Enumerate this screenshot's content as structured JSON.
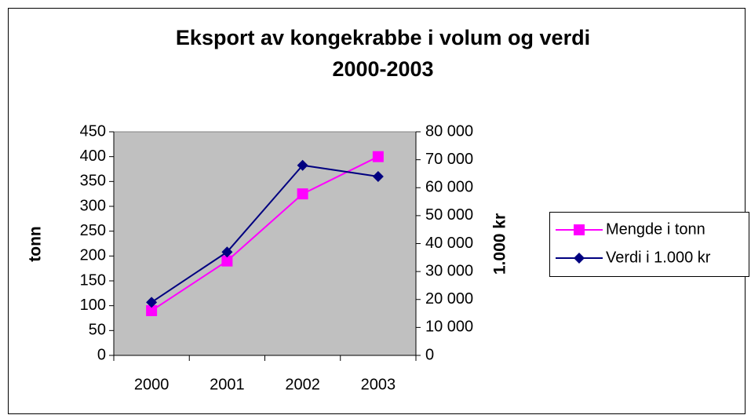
{
  "chart_data": {
    "type": "line",
    "title": [
      "Eksport av kongekrabbe i volum og verdi",
      "2000-2003"
    ],
    "categories": [
      "2000",
      "2001",
      "2002",
      "2003"
    ],
    "ylabel": "tonn",
    "y2label": "1.000 kr",
    "ylim": [
      0,
      450
    ],
    "yticks": [
      0,
      50,
      100,
      150,
      200,
      250,
      300,
      350,
      400,
      450
    ],
    "y2lim": [
      0,
      80000
    ],
    "y2ticks": [
      0,
      {
        "value": 10000,
        "label": "10 000"
      },
      {
        "value": 20000,
        "label": "20 000"
      },
      {
        "value": 30000,
        "label": "30 000"
      },
      {
        "value": 40000,
        "label": "40 000"
      },
      {
        "value": 50000,
        "label": "50 000"
      },
      {
        "value": 60000,
        "label": "60 000"
      },
      {
        "value": 70000,
        "label": "70 000"
      },
      {
        "value": 80000,
        "label": "80 000"
      }
    ],
    "legend": "right",
    "plot_background": "#c0c0c0",
    "series": [
      {
        "name": "Mengde i tonn",
        "color": "#ff00ff",
        "marker": "square",
        "values": [
          90,
          190,
          325,
          400
        ]
      },
      {
        "name": "Verdi i 1.000 kr",
        "color": "#000080",
        "marker": "diamond",
        "axis": "y2",
        "values": [
          19000,
          37000,
          68000,
          64000
        ]
      }
    ]
  }
}
